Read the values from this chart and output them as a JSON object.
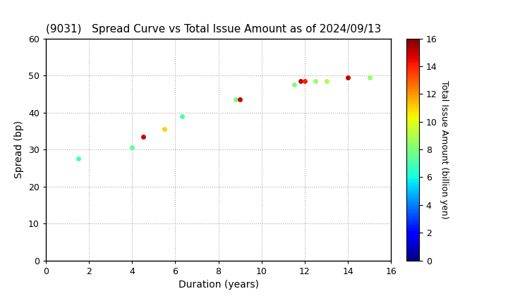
{
  "title": "(9031)   Spread Curve vs Total Issue Amount as of 2024/09/13",
  "xlabel": "Duration (years)",
  "ylabel": "Spread (bp)",
  "colorbar_label": "Total Issue Amount (billion yen)",
  "xlim": [
    0,
    16
  ],
  "ylim": [
    0,
    60
  ],
  "xticks": [
    0,
    2,
    4,
    6,
    8,
    10,
    12,
    14,
    16
  ],
  "yticks": [
    0,
    10,
    20,
    30,
    40,
    50,
    60
  ],
  "colorbar_min": 0,
  "colorbar_max": 16,
  "colorbar_ticks": [
    0,
    2,
    4,
    6,
    8,
    10,
    12,
    14,
    16
  ],
  "points": [
    {
      "duration": 1.5,
      "spread": 27.5,
      "amount": 7.0
    },
    {
      "duration": 4.0,
      "spread": 30.5,
      "amount": 7.5
    },
    {
      "duration": 4.5,
      "spread": 33.5,
      "amount": 15.0
    },
    {
      "duration": 5.5,
      "spread": 35.5,
      "amount": 11.0
    },
    {
      "duration": 6.3,
      "spread": 39.0,
      "amount": 7.0
    },
    {
      "duration": 8.8,
      "spread": 43.5,
      "amount": 8.0
    },
    {
      "duration": 9.0,
      "spread": 43.5,
      "amount": 15.0
    },
    {
      "duration": 11.5,
      "spread": 47.5,
      "amount": 8.0
    },
    {
      "duration": 11.8,
      "spread": 48.5,
      "amount": 15.0
    },
    {
      "duration": 12.0,
      "spread": 48.5,
      "amount": 14.0
    },
    {
      "duration": 12.5,
      "spread": 48.5,
      "amount": 8.5
    },
    {
      "duration": 13.0,
      "spread": 48.5,
      "amount": 9.0
    },
    {
      "duration": 14.0,
      "spread": 49.5,
      "amount": 15.0
    },
    {
      "duration": 15.0,
      "spread": 49.5,
      "amount": 8.5
    }
  ],
  "marker_size": 25,
  "bg_color": "#ffffff",
  "grid_color": "#aaaaaa",
  "title_fontsize": 11,
  "label_fontsize": 10,
  "tick_fontsize": 9,
  "cbar_fontsize": 9
}
